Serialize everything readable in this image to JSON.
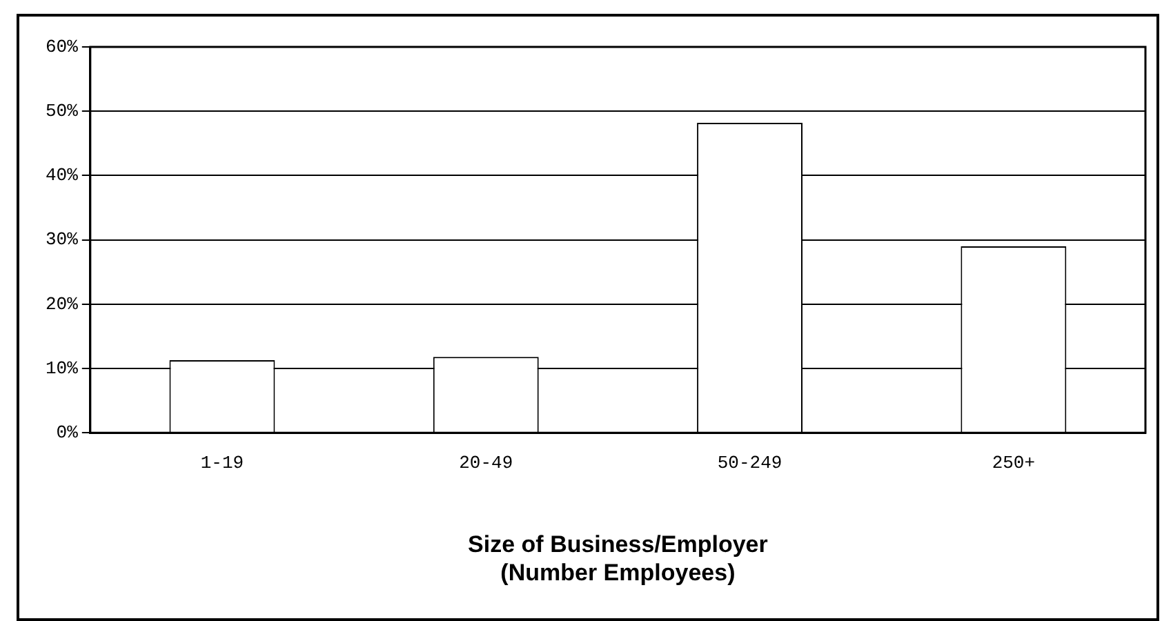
{
  "chart_data": {
    "type": "bar",
    "xlabel": "Size of Business/Employer\n(Number Employees)",
    "categories": [
      "1-19",
      "20-49",
      "50-249",
      "250+"
    ],
    "values": [
      11.3,
      11.8,
      48.2,
      29
    ],
    "color": "#ffffff",
    "ylim": [
      0,
      60
    ],
    "yticks": [
      {
        "value": 0,
        "label": "0%"
      },
      {
        "value": 10,
        "label": "10%"
      },
      {
        "value": 20,
        "label": "20%"
      },
      {
        "value": 30,
        "label": "30%"
      },
      {
        "value": 40,
        "label": "40%"
      },
      {
        "value": 50,
        "label": "50%"
      },
      {
        "value": 60,
        "label": "60%"
      }
    ],
    "grid": "y",
    "legend": false
  }
}
